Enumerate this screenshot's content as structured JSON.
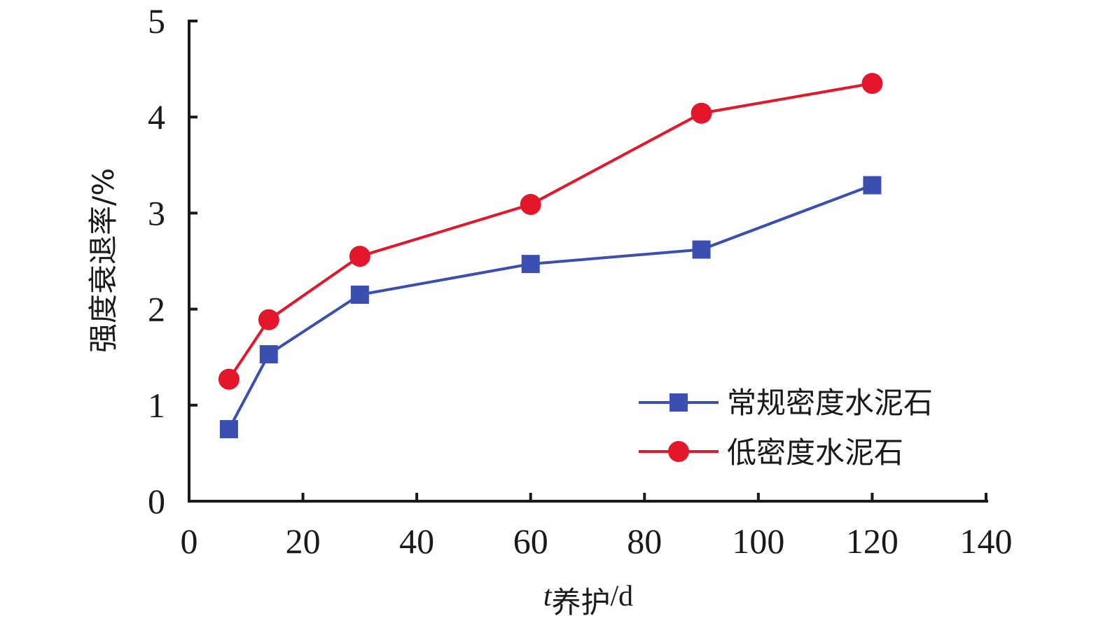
{
  "chart_data": {
    "type": "line",
    "xlabel": {
      "var": "t",
      "sub": "养护",
      "unit": "/d"
    },
    "ylabel": "强度衰退率/%",
    "xlim": [
      0,
      140
    ],
    "ylim": [
      0,
      5
    ],
    "xticks": [
      0,
      20,
      40,
      60,
      80,
      100,
      120,
      140
    ],
    "yticks": [
      0,
      1,
      2,
      3,
      4,
      5
    ],
    "grid": false,
    "legend_position": "lower-right",
    "x": [
      7,
      14,
      30,
      60,
      90,
      120
    ],
    "series": [
      {
        "name": "常规密度水泥石",
        "values": [
          0.75,
          1.53,
          2.15,
          2.47,
          2.62,
          3.29
        ],
        "color": "#3a4fb0",
        "marker": "square"
      },
      {
        "name": "低密度水泥石",
        "values": [
          1.27,
          1.89,
          2.55,
          3.09,
          4.04,
          4.35
        ],
        "color": "#e3162b",
        "marker": "circle"
      }
    ]
  }
}
